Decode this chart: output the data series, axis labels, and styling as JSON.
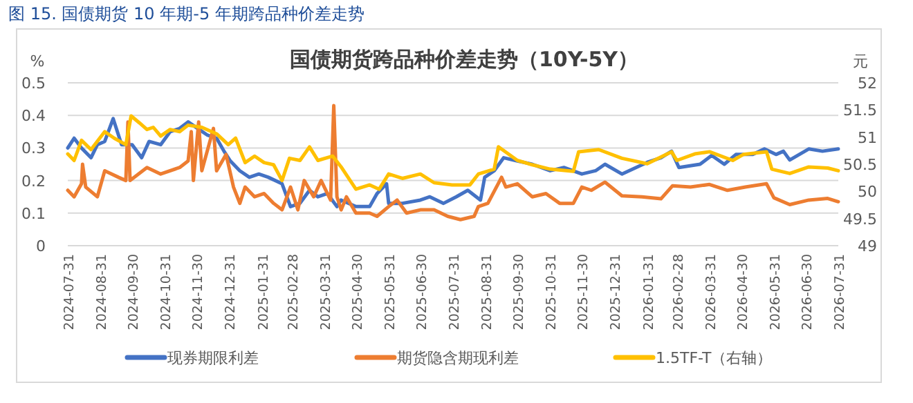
{
  "chart_data": {
    "type": "line",
    "title": "国债期货跨品种价差走势（10Y-5Y）",
    "annotations": [
      "图 15. 国债期货 10 年期-5 年期跨品种价差走势"
    ],
    "ylabel": "%",
    "y2label": "元",
    "xlim": [
      "2024-07-31",
      "2026-07-31"
    ],
    "xticks": [
      "2024-07-31",
      "2024-08-31",
      "2024-09-30",
      "2024-10-31",
      "2024-11-30",
      "2024-12-31",
      "2025-01-31",
      "2025-02-28",
      "2025-03-31",
      "2025-04-30",
      "2025-05-31",
      "2025-06-30",
      "2025-07-31",
      "2025-08-31",
      "2025-09-30",
      "2025-10-31",
      "2025-11-30",
      "2025-12-31",
      "2026-01-31",
      "2026-02-28",
      "2026-03-31",
      "2026-04-30",
      "2026-05-31",
      "2026-06-30",
      "2026-07-31"
    ],
    "ylim": [
      0,
      0.5
    ],
    "yticks": [
      0,
      0.1,
      0.2,
      0.3,
      0.4,
      0.5
    ],
    "y2lim": [
      49,
      52
    ],
    "y2ticks": [
      49,
      49.5,
      50,
      50.5,
      51,
      51.5,
      52
    ],
    "grid": "y",
    "legend": "bottom",
    "marker": "none",
    "line_style": "solid",
    "series": [
      {
        "name": "现券期限利差",
        "color": "#4472c4",
        "x": [
          "2024-07-31",
          "2024-08-06",
          "2024-08-13",
          "2024-08-22",
          "2024-08-28",
          "2024-09-04",
          "2024-09-12",
          "2024-09-20",
          "2024-09-30",
          "2024-10-09",
          "2024-10-16",
          "2024-10-27",
          "2024-11-05",
          "2024-11-14",
          "2024-11-22",
          "2024-12-01",
          "2024-12-10",
          "2024-12-19",
          "2024-12-26",
          "2025-01-01",
          "2025-01-10",
          "2025-01-19",
          "2025-01-28",
          "2025-02-06",
          "2025-02-19",
          "2025-02-27",
          "2025-03-08",
          "2025-03-17",
          "2025-03-25",
          "2025-04-03",
          "2025-04-12",
          "2025-04-16",
          "2025-04-30",
          "2025-05-13",
          "2025-05-20",
          "2025-05-29",
          "2025-05-31",
          "2025-06-13",
          "2025-06-30",
          "2025-07-09",
          "2025-07-22",
          "2025-08-03",
          "2025-08-14",
          "2025-08-26",
          "2025-08-30",
          "2025-09-08",
          "2025-09-17",
          "2025-09-30",
          "2025-10-14",
          "2025-10-31",
          "2025-11-13",
          "2025-11-30",
          "2025-12-13",
          "2025-12-22",
          "2026-01-07",
          "2026-01-31",
          "2026-02-13",
          "2026-02-23",
          "2026-03-02",
          "2026-03-22",
          "2026-04-02",
          "2026-04-14",
          "2026-04-25",
          "2026-05-11",
          "2026-05-22",
          "2026-06-02",
          "2026-06-09",
          "2026-06-15",
          "2026-07-03",
          "2026-07-16",
          "2026-07-31"
        ],
        "values": [
          0.3,
          0.33,
          0.3,
          0.27,
          0.31,
          0.32,
          0.39,
          0.31,
          0.31,
          0.27,
          0.32,
          0.31,
          0.35,
          0.36,
          0.38,
          0.36,
          0.34,
          0.33,
          0.29,
          0.26,
          0.23,
          0.21,
          0.22,
          0.21,
          0.19,
          0.12,
          0.13,
          0.17,
          0.15,
          0.16,
          0.12,
          0.14,
          0.12,
          0.12,
          0.16,
          0.19,
          0.13,
          0.13,
          0.14,
          0.15,
          0.13,
          0.15,
          0.17,
          0.14,
          0.21,
          0.23,
          0.27,
          0.26,
          0.25,
          0.23,
          0.24,
          0.22,
          0.23,
          0.25,
          0.22,
          0.256,
          0.27,
          0.29,
          0.24,
          0.25,
          0.277,
          0.25,
          0.28,
          0.28,
          0.297,
          0.28,
          0.29,
          0.263,
          0.297,
          0.29,
          0.297
        ]
      },
      {
        "name": "期货隐含期现利差",
        "color": "#ed7d31",
        "x": [
          "2024-07-31",
          "2024-08-06",
          "2024-08-13",
          "2024-08-14",
          "2024-08-17",
          "2024-08-28",
          "2024-09-04",
          "2024-09-17",
          "2024-09-24",
          "2024-09-26",
          "2024-09-28",
          "2024-10-14",
          "2024-10-27",
          "2024-11-14",
          "2024-11-22",
          "2024-11-25",
          "2024-11-27",
          "2024-12-02",
          "2024-12-05",
          "2024-12-16",
          "2024-12-19",
          "2024-12-28",
          "2025-01-04",
          "2025-01-10",
          "2025-01-15",
          "2025-01-24",
          "2025-02-02",
          "2025-02-11",
          "2025-02-19",
          "2025-02-27",
          "2025-03-06",
          "2025-03-12",
          "2025-03-21",
          "2025-03-28",
          "2025-04-06",
          "2025-04-09",
          "2025-04-12",
          "2025-04-16",
          "2025-04-21",
          "2025-04-30",
          "2025-05-13",
          "2025-05-20",
          "2025-05-31",
          "2025-06-08",
          "2025-06-17",
          "2025-06-30",
          "2025-07-13",
          "2025-07-26",
          "2025-08-07",
          "2025-08-20",
          "2025-08-24",
          "2025-09-02",
          "2025-09-15",
          "2025-09-19",
          "2025-09-30",
          "2025-10-14",
          "2025-10-27",
          "2025-11-09",
          "2025-11-22",
          "2025-11-30",
          "2025-12-09",
          "2025-12-22",
          "2026-01-07",
          "2026-01-26",
          "2026-02-13",
          "2026-02-24",
          "2026-03-13",
          "2026-03-31",
          "2026-04-17",
          "2026-05-04",
          "2026-05-24",
          "2026-05-31",
          "2026-06-15",
          "2026-07-03",
          "2026-07-21",
          "2026-07-31"
        ],
        "values": [
          0.17,
          0.15,
          0.19,
          0.25,
          0.18,
          0.15,
          0.23,
          0.21,
          0.2,
          0.38,
          0.2,
          0.24,
          0.22,
          0.24,
          0.26,
          0.35,
          0.2,
          0.38,
          0.23,
          0.36,
          0.23,
          0.28,
          0.18,
          0.13,
          0.18,
          0.15,
          0.16,
          0.13,
          0.11,
          0.18,
          0.11,
          0.2,
          0.15,
          0.2,
          0.14,
          0.43,
          0.15,
          0.11,
          0.15,
          0.1,
          0.1,
          0.09,
          0.12,
          0.14,
          0.1,
          0.11,
          0.11,
          0.09,
          0.08,
          0.09,
          0.12,
          0.13,
          0.21,
          0.18,
          0.19,
          0.15,
          0.16,
          0.13,
          0.13,
          0.18,
          0.17,
          0.195,
          0.153,
          0.15,
          0.144,
          0.184,
          0.18,
          0.188,
          0.17,
          0.18,
          0.19,
          0.147,
          0.126,
          0.14,
          0.145,
          0.135
        ]
      },
      {
        "name": "1.5TF-T（右轴）",
        "color": "#ffc000",
        "axis": "y2",
        "x": [
          "2024-07-31",
          "2024-08-06",
          "2024-08-13",
          "2024-08-22",
          "2024-09-04",
          "2024-09-13",
          "2024-09-24",
          "2024-09-29",
          "2024-10-07",
          "2024-10-14",
          "2024-10-20",
          "2024-10-27",
          "2024-11-05",
          "2024-11-14",
          "2024-11-22",
          "2024-12-05",
          "2024-12-19",
          "2024-12-30",
          "2025-01-06",
          "2025-01-15",
          "2025-01-24",
          "2025-02-02",
          "2025-02-11",
          "2025-02-19",
          "2025-02-26",
          "2025-03-08",
          "2025-03-17",
          "2025-03-25",
          "2025-04-08",
          "2025-04-16",
          "2025-04-30",
          "2025-05-13",
          "2025-05-22",
          "2025-05-31",
          "2025-06-13",
          "2025-06-30",
          "2025-07-13",
          "2025-07-30",
          "2025-08-16",
          "2025-08-24",
          "2025-09-08",
          "2025-09-12",
          "2025-09-30",
          "2025-10-14",
          "2025-10-31",
          "2025-11-22",
          "2025-11-27",
          "2025-12-16",
          "2026-01-07",
          "2026-01-31",
          "2026-02-23",
          "2026-02-28",
          "2026-03-17",
          "2026-03-31",
          "2026-04-22",
          "2026-05-02",
          "2026-05-24",
          "2026-05-29",
          "2026-06-15",
          "2026-07-03",
          "2026-07-21",
          "2026-07-31"
        ],
        "values": [
          50.69,
          50.57,
          50.94,
          50.77,
          51.1,
          50.98,
          50.86,
          51.39,
          51.26,
          51.14,
          51.18,
          51.02,
          51.14,
          51.1,
          51.22,
          51.18,
          51.06,
          50.86,
          50.98,
          50.53,
          50.65,
          50.53,
          50.49,
          50.2,
          50.61,
          50.57,
          50.82,
          50.57,
          50.65,
          50.45,
          50.04,
          50.12,
          50.04,
          50.32,
          50.24,
          50.32,
          50.16,
          50.12,
          50.12,
          50.32,
          50.41,
          50.82,
          50.57,
          50.49,
          50.41,
          50.37,
          50.73,
          50.77,
          50.61,
          50.51,
          50.73,
          50.57,
          50.69,
          50.73,
          50.57,
          50.68,
          50.73,
          50.41,
          50.33,
          50.45,
          50.43,
          50.38
        ]
      }
    ]
  }
}
